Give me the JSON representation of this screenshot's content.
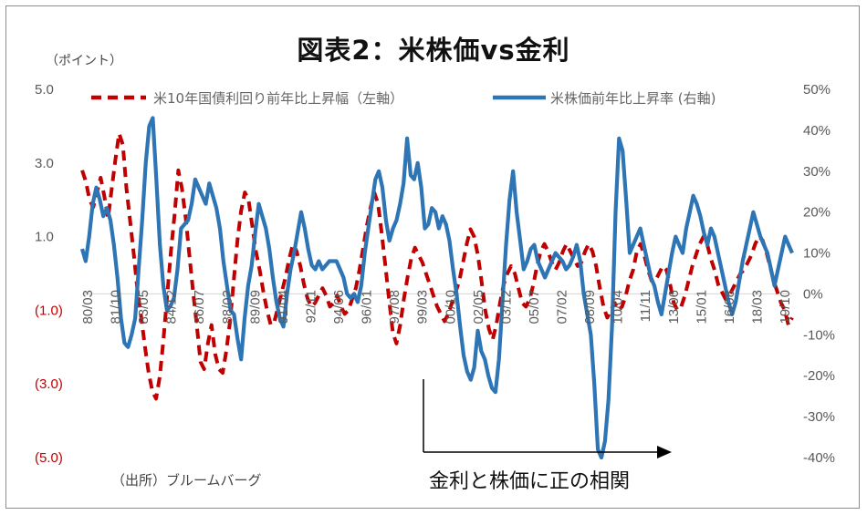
{
  "chart_data": {
    "type": "line",
    "title": "図表2：米株価vs金利",
    "unit_label": "（ポイント）",
    "source": "（出所）ブルームバーグ",
    "annotation": "金利と株価に正の相関",
    "x_tick_labels": [
      "80/03",
      "81/10",
      "83/05",
      "84/12",
      "86/07",
      "88/02",
      "89/09",
      "91/04",
      "92/11",
      "94/06",
      "96/01",
      "97/08",
      "99/03",
      "00/10",
      "02/05",
      "03/12",
      "05/07",
      "07/02",
      "08/09",
      "10/04",
      "11/11",
      "13/06",
      "15/01",
      "16/08",
      "18/03",
      "19/10"
    ],
    "left_axis": {
      "ylim": [
        -5,
        5
      ],
      "ticks": [
        5.0,
        3.0,
        1.0,
        -1.0,
        -3.0,
        -5.0
      ],
      "tick_labels": [
        "5.0",
        "3.0",
        "1.0",
        "(1.0)",
        "(3.0)",
        "(5.0)"
      ],
      "positive_color": "#595959",
      "negative_color": "#c00000"
    },
    "right_axis": {
      "ylim": [
        -40,
        50
      ],
      "ticks": [
        50,
        40,
        30,
        20,
        10,
        0,
        -10,
        -20,
        -30,
        -40
      ],
      "tick_labels": [
        "50%",
        "40%",
        "30%",
        "20%",
        "10%",
        "0%",
        "-10%",
        "-20%",
        "-30%",
        "-40%"
      ]
    },
    "series": [
      {
        "name": "米10年国債利回り前年比上昇幅（左軸）",
        "axis": "left",
        "color": "#c00000",
        "style": "dashed",
        "values": [
          2.8,
          2.5,
          2.0,
          1.8,
          2.2,
          2.6,
          2.1,
          1.5,
          2.3,
          3.1,
          3.8,
          3.5,
          2.3,
          1.4,
          0.5,
          -0.5,
          -1.2,
          -2.0,
          -2.7,
          -3.2,
          -3.4,
          -2.8,
          -1.8,
          -0.6,
          0.6,
          1.6,
          2.8,
          2.3,
          1.5,
          0.5,
          -0.5,
          -1.4,
          -2.4,
          -2.6,
          -1.9,
          -1.4,
          -2.2,
          -2.6,
          -2.7,
          -2.1,
          -1.3,
          -0.2,
          0.9,
          1.7,
          2.2,
          2.0,
          1.3,
          0.6,
          0.1,
          -0.5,
          -1.0,
          -1.4,
          -1.3,
          -0.9,
          -0.5,
          -0.1,
          0.4,
          0.8,
          0.6,
          0.2,
          -0.3,
          -0.7,
          -0.9,
          -0.8,
          -0.6,
          -0.4,
          -0.6,
          -0.9,
          -0.8,
          -0.6,
          -0.9,
          -1.1,
          -1.0,
          -0.7,
          -0.4,
          0.1,
          0.7,
          1.3,
          1.8,
          2.2,
          1.9,
          1.1,
          0.2,
          -0.7,
          -1.6,
          -1.9,
          -1.4,
          -0.7,
          -0.1,
          0.4,
          0.7,
          0.5,
          0.3,
          0.0,
          -0.3,
          -0.6,
          -0.9,
          -1.1,
          -1.3,
          -1.1,
          -0.8,
          -0.5,
          -0.2,
          0.3,
          0.8,
          1.2,
          1.0,
          0.5,
          -0.2,
          -1.0,
          -1.5,
          -1.8,
          -1.4,
          -0.8,
          -0.3,
          0.0,
          0.2,
          0.0,
          -0.4,
          -0.8,
          -0.9,
          -0.7,
          -0.3,
          0.2,
          0.6,
          0.8,
          0.6,
          0.3,
          0.1,
          0.3,
          0.6,
          0.8,
          0.6,
          0.4,
          0.2,
          0.3,
          0.6,
          0.8,
          0.6,
          0.2,
          -0.4,
          -0.9,
          -1.2,
          -1.0,
          -0.8,
          -1.0,
          -0.9,
          -0.6,
          -0.2,
          0.1,
          0.6,
          0.8,
          0.5,
          0.1,
          -0.2,
          -0.2,
          0.0,
          0.2,
          0.1,
          -0.3,
          -0.8,
          -1.0,
          -0.9,
          -0.6,
          -0.2,
          0.2,
          0.5,
          0.8,
          1.0,
          0.8,
          0.4,
          0.1,
          -0.3,
          -0.5,
          -0.7,
          -0.6,
          -0.4,
          -0.2,
          0.0,
          0.1,
          0.3,
          0.5,
          0.8,
          1.0,
          0.9,
          0.6,
          0.2,
          -0.2,
          -0.5,
          -0.8,
          -1.0,
          -1.4,
          -1.2
        ]
      },
      {
        "name": "米株価前年比上昇率 (右軸)",
        "axis": "right",
        "color": "#2e75b6",
        "style": "solid",
        "values": [
          11,
          8,
          14,
          22,
          26,
          23,
          19,
          21,
          18,
          12,
          4,
          -6,
          -12,
          -13,
          -10,
          -6,
          6,
          18,
          32,
          41,
          43,
          28,
          12,
          2,
          -4,
          -3,
          -1,
          6,
          16,
          17,
          18,
          22,
          28,
          26,
          24,
          22,
          27,
          24,
          21,
          16,
          8,
          2,
          -4,
          -5,
          -11,
          -16,
          -6,
          2,
          7,
          15,
          22,
          19,
          16,
          11,
          4,
          -2,
          -6,
          -8,
          0,
          6,
          10,
          15,
          20,
          16,
          11,
          7,
          6,
          8,
          6,
          7,
          8,
          8,
          8,
          6,
          4,
          0,
          -1,
          0,
          -2,
          2,
          10,
          16,
          22,
          28,
          30,
          26,
          18,
          13,
          16,
          18,
          22,
          27,
          38,
          29,
          28,
          32,
          26,
          16,
          17,
          21,
          20,
          16,
          19,
          17,
          13,
          6,
          0,
          -8,
          -15,
          -19,
          -21,
          -18,
          -9,
          -14,
          -16,
          -20,
          -23,
          -24,
          -16,
          -2,
          12,
          23,
          30,
          20,
          13,
          6,
          8,
          11,
          12,
          8,
          6,
          4,
          6,
          8,
          10,
          9,
          8,
          6,
          7,
          9,
          12,
          8,
          0,
          -5,
          -10,
          -22,
          -38,
          -40,
          -36,
          -26,
          -8,
          20,
          38,
          35,
          23,
          10,
          12,
          14,
          16,
          12,
          8,
          4,
          2,
          -2,
          -5,
          0,
          5,
          10,
          14,
          12,
          10,
          16,
          20,
          24,
          22,
          19,
          15,
          12,
          16,
          14,
          10,
          6,
          2,
          -2,
          -5,
          -2,
          3,
          8,
          12,
          16,
          20,
          17,
          14,
          12,
          10,
          6,
          2,
          6,
          10,
          14,
          12,
          10
        ]
      }
    ]
  }
}
